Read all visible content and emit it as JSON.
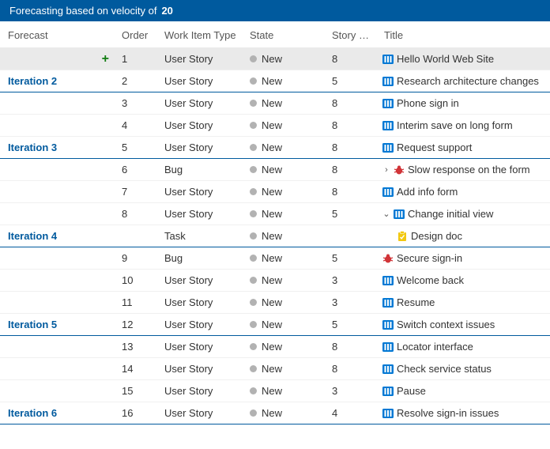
{
  "banner": {
    "prefix": "Forecasting based on velocity of",
    "value": "20"
  },
  "columns": {
    "forecast": "Forecast",
    "order": "Order",
    "type": "Work Item Type",
    "state": "State",
    "story": "Story …",
    "title": "Title"
  },
  "icons": {
    "story_color": "#0078d4",
    "bug_color": "#d13438",
    "task_color": "#f2c811"
  },
  "rows": [
    {
      "forecast": "",
      "add": true,
      "selected": true,
      "order": "1",
      "type": "User Story",
      "state": "New",
      "story": "8",
      "icon": "story",
      "title": "Hello World Web Site"
    },
    {
      "forecast": "Iteration 2",
      "order": "2",
      "type": "User Story",
      "state": "New",
      "story": "5",
      "icon": "story",
      "title": "Research architecture changes",
      "iter_last": true
    },
    {
      "forecast": "",
      "order": "3",
      "type": "User Story",
      "state": "New",
      "story": "8",
      "icon": "story",
      "title": "Phone sign in"
    },
    {
      "forecast": "",
      "order": "4",
      "type": "User Story",
      "state": "New",
      "story": "8",
      "icon": "story",
      "title": "Interim save on long form"
    },
    {
      "forecast": "Iteration 3",
      "order": "5",
      "type": "User Story",
      "state": "New",
      "story": "8",
      "icon": "story",
      "title": "Request support",
      "iter_last": true
    },
    {
      "forecast": "",
      "order": "6",
      "type": "Bug",
      "state": "New",
      "story": "8",
      "icon": "bug",
      "expander": "›",
      "title": "Slow response on the form"
    },
    {
      "forecast": "",
      "order": "7",
      "type": "User Story",
      "state": "New",
      "story": "8",
      "icon": "story",
      "title": "Add info form"
    },
    {
      "forecast": "",
      "order": "8",
      "type": "User Story",
      "state": "New",
      "story": "5",
      "icon": "story",
      "expander": "⌄",
      "title": "Change initial view"
    },
    {
      "forecast": "Iteration 4",
      "order": "",
      "type": "Task",
      "state": "New",
      "story": "",
      "icon": "task",
      "indent": 1,
      "title": "Design doc",
      "iter_last": true
    },
    {
      "forecast": "",
      "order": "9",
      "type": "Bug",
      "state": "New",
      "story": "5",
      "icon": "bug",
      "title": "Secure sign-in"
    },
    {
      "forecast": "",
      "order": "10",
      "type": "User Story",
      "state": "New",
      "story": "3",
      "icon": "story",
      "title": "Welcome back"
    },
    {
      "forecast": "",
      "order": "11",
      "type": "User Story",
      "state": "New",
      "story": "3",
      "icon": "story",
      "title": "Resume"
    },
    {
      "forecast": "Iteration 5",
      "order": "12",
      "type": "User Story",
      "state": "New",
      "story": "5",
      "icon": "story",
      "title": "Switch context issues",
      "iter_last": true
    },
    {
      "forecast": "",
      "order": "13",
      "type": "User Story",
      "state": "New",
      "story": "8",
      "icon": "story",
      "title": "Locator interface"
    },
    {
      "forecast": "",
      "order": "14",
      "type": "User Story",
      "state": "New",
      "story": "8",
      "icon": "story",
      "title": "Check service status"
    },
    {
      "forecast": "",
      "order": "15",
      "type": "User Story",
      "state": "New",
      "story": "3",
      "icon": "story",
      "title": "Pause"
    },
    {
      "forecast": "Iteration 6",
      "order": "16",
      "type": "User Story",
      "state": "New",
      "story": "4",
      "icon": "story",
      "title": "Resolve sign-in issues",
      "iter_last": true
    }
  ]
}
